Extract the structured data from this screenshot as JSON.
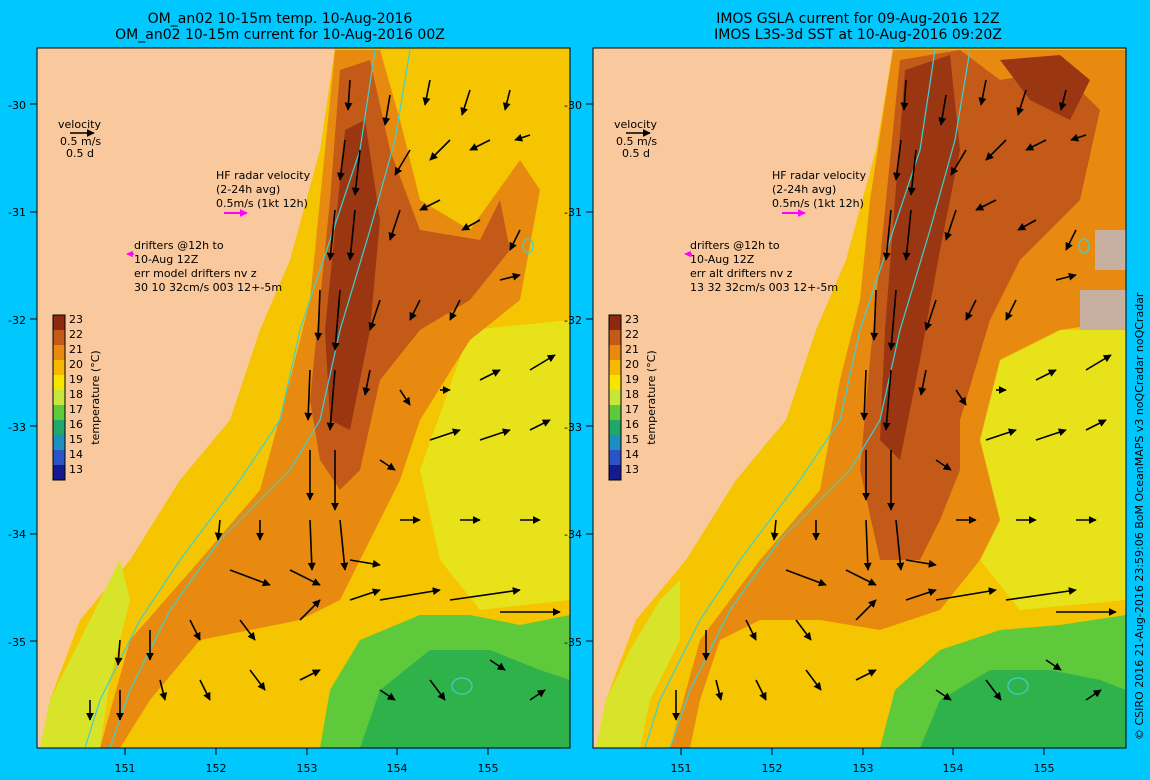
{
  "panels": [
    {
      "title_line1": "OM_an02 10-15m temp. 10-Aug-2016",
      "title_line2": "OM_an02 10-15m current for 10-Aug-2016 00Z",
      "velocity_label": "velocity",
      "velocity_scale": "0.5 m/s",
      "velocity_days": "0.5 d",
      "hf_line1": "HF radar velocity",
      "hf_line2": "(2-24h avg)",
      "hf_line3": "0.5m/s (1kt 12h)",
      "drift_line1": "drifters @12h to",
      "drift_line2": "10-Aug 12Z",
      "drift_line3": "err model drifters nv z",
      "drift_line4": "30 10 32cm/s 003 12+-5m"
    },
    {
      "title_line1": "IMOS GSLA current for 09-Aug-2016 12Z",
      "title_line2": "IMOS L3S-3d SST at 10-Aug-2016 09:20Z",
      "velocity_label": "velocity",
      "velocity_scale": "0.5 m/s",
      "velocity_days": "0.5 d",
      "hf_line1": "HF radar velocity",
      "hf_line2": "(2-24h avg)",
      "hf_line3": "0.5m/s (1kt 12h)",
      "drift_line1": "drifters @12h to",
      "drift_line2": "10-Aug 12Z",
      "drift_line3": "err alt drifters nv z",
      "drift_line4": "13 32 32cm/s 003 12+-5m"
    }
  ],
  "lat_ticks": [
    "-30",
    "-31",
    "-32",
    "-33",
    "-34",
    "-35"
  ],
  "lon_ticks": [
    "151",
    "152",
    "153",
    "154",
    "155"
  ],
  "colorbar": {
    "title": "temperature (°C)",
    "labels": [
      "23",
      "22",
      "21",
      "20",
      "19",
      "18",
      "17",
      "16",
      "15",
      "14",
      "13"
    ],
    "colors": [
      "#8b2a10",
      "#c45a18",
      "#e88a10",
      "#f6b800",
      "#f7e500",
      "#c8e63a",
      "#5ec93a",
      "#1fa86a",
      "#1c8ec0",
      "#2a53c8",
      "#151a8f"
    ]
  },
  "colors": {
    "land": "#f9c89c",
    "background": "#00c8ff",
    "hf_arrow": "#ff00ff",
    "isobath": "#3ad2d2"
  },
  "copyright": "© CSIRO 2016   21-Aug-2016 23:59:06 BoM OceanMAPS v3 noQCradar noQCradar"
}
